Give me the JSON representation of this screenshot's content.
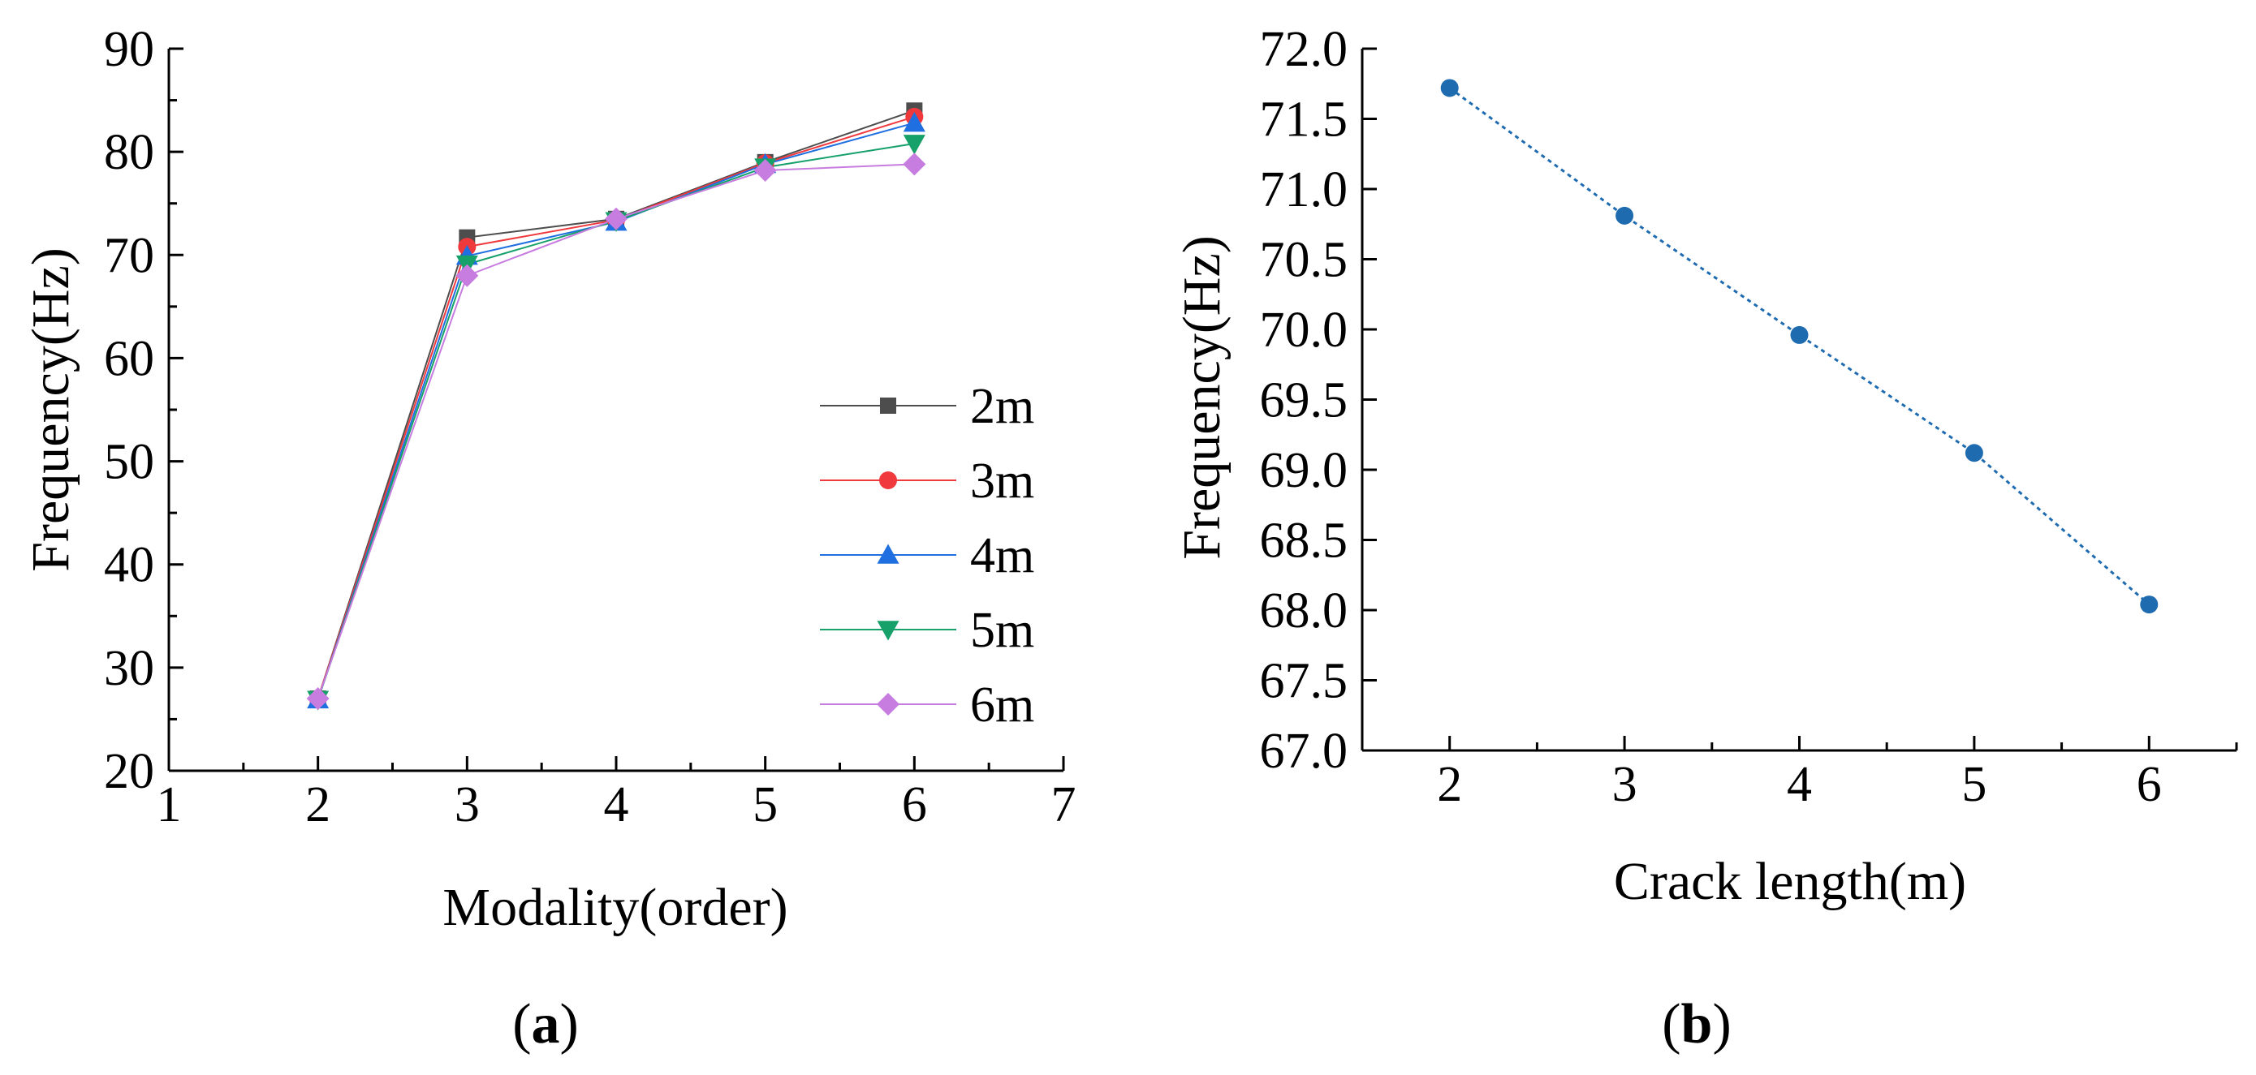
{
  "chart_data": [
    {
      "type": "line",
      "panel": "a",
      "xlabel": "Modality(order)",
      "ylabel": "Frequency(Hz)",
      "xlim": [
        1,
        7
      ],
      "ylim": [
        20,
        90
      ],
      "xticks": [
        "1",
        "2",
        "3",
        "4",
        "5",
        "6",
        "7"
      ],
      "yticks": [
        "20",
        "30",
        "40",
        "50",
        "60",
        "70",
        "80",
        "90"
      ],
      "legend_position": "right",
      "x": [
        2,
        3,
        4,
        5,
        6
      ],
      "series": [
        {
          "name": "2m",
          "marker": "square",
          "color": "#4d4d4d",
          "values": [
            27.0,
            71.7,
            73.5,
            79.0,
            84.0
          ]
        },
        {
          "name": "3m",
          "marker": "circle",
          "color": "#f0393d",
          "values": [
            27.0,
            70.8,
            73.4,
            78.9,
            83.4
          ]
        },
        {
          "name": "4m",
          "marker": "triangle-up",
          "color": "#1f6fe0",
          "values": [
            26.9,
            69.9,
            73.2,
            78.8,
            82.8
          ]
        },
        {
          "name": "5m",
          "marker": "triangle-down",
          "color": "#16a06a",
          "values": [
            26.9,
            69.1,
            73.3,
            78.5,
            80.8
          ]
        },
        {
          "name": "6m",
          "marker": "diamond",
          "color": "#c77ce0",
          "values": [
            27.0,
            68.0,
            73.5,
            78.2,
            78.8
          ]
        }
      ]
    },
    {
      "type": "scatter",
      "panel": "b",
      "xlabel": "Crack length(m)",
      "ylabel": "Frequency(Hz)",
      "xlim": [
        1.5,
        6.5
      ],
      "ylim": [
        67.0,
        72.0
      ],
      "xticks": [
        "2",
        "3",
        "4",
        "5",
        "6"
      ],
      "yticks": [
        "67.0",
        "67.5",
        "68.0",
        "68.5",
        "69.0",
        "69.5",
        "70.0",
        "70.5",
        "71.0",
        "71.5",
        "72.0"
      ],
      "color": "#1f6bb0",
      "line_style": "dotted",
      "x": [
        2,
        3,
        4,
        5,
        6
      ],
      "values": [
        71.72,
        70.81,
        69.96,
        69.12,
        68.04
      ]
    }
  ],
  "labels": {
    "panel_a": "a",
    "panel_b": "b",
    "open_paren": "(",
    "close_paren": ")"
  }
}
